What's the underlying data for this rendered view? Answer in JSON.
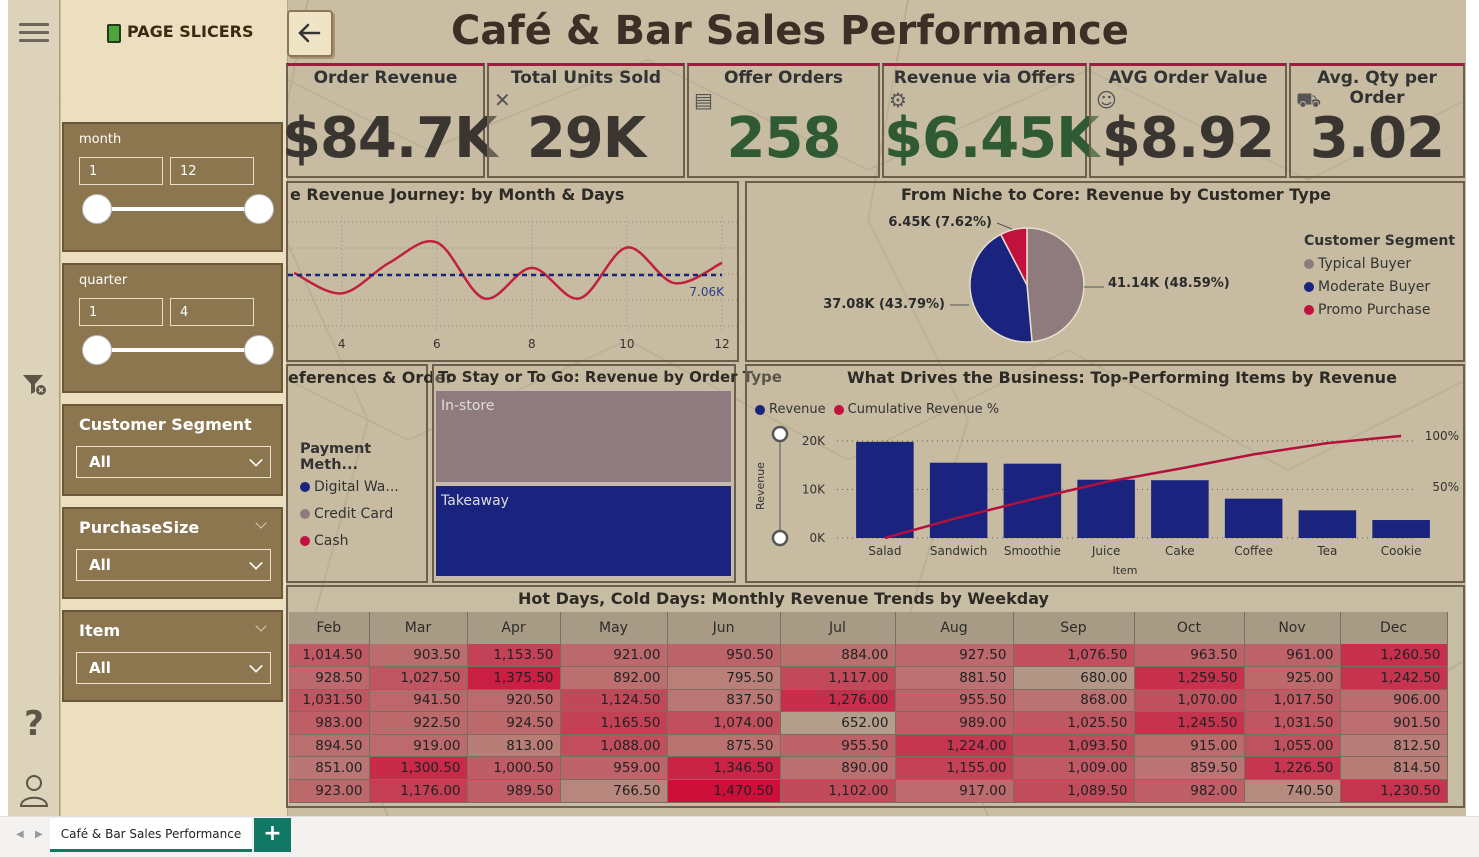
{
  "report": {
    "title": "Café & Bar Sales Performance"
  },
  "slicers": {
    "title": "PAGE SLICERS",
    "month": {
      "label": "month",
      "min": "1",
      "max": "12"
    },
    "quarter": {
      "label": "quarter",
      "min": "1",
      "max": "4"
    },
    "customer_segment": {
      "label": "Customer Segment",
      "value": "All"
    },
    "purchase_size": {
      "label": "PurchaseSize",
      "value": "All"
    },
    "item": {
      "label": "Item",
      "value": "All"
    }
  },
  "kpis": [
    {
      "label": "Order Revenue",
      "value": "$84.7K",
      "color": "#3a3530"
    },
    {
      "label": "Total Units Sold",
      "value": "29K",
      "color": "#3a3530"
    },
    {
      "label": "Offer Orders",
      "value": "258",
      "color": "#2f5a33"
    },
    {
      "label": "Revenue via Offers",
      "value": "$6.45K",
      "color": "#2f5a33"
    },
    {
      "label": "AVG Order Value",
      "value": "$8.92",
      "color": "#3a3530"
    },
    {
      "label": "Avg. Qty per Order",
      "value": "3.02",
      "color": "#3a3530"
    }
  ],
  "line_panel": {
    "title": "e Revenue Journey: by Month & Days",
    "avg_label": "7.06K",
    "x_ticks": [
      "4",
      "6",
      "8",
      "10",
      "12"
    ]
  },
  "pie_panel": {
    "title": "From Niche to Core: Revenue by Customer Type",
    "legend_title": "Customer Segment",
    "labels": [
      "41.14K (48.59%)",
      "37.08K (43.79%)",
      "6.45K (7.62%)"
    ]
  },
  "payment_panel": {
    "title": "eferences & Order",
    "legend_title": "Payment Meth...",
    "items": [
      "Digital Wa...",
      "Credit Card",
      "Cash"
    ]
  },
  "ordertype_panel": {
    "title": "To Stay or To Go: Revenue by Order Type",
    "segments": [
      "In-store",
      "Takeaway"
    ]
  },
  "pareto_panel": {
    "title": "What Drives the Business: Top-Performing Items by Revenue",
    "legend": [
      "Revenue",
      "Cumulative Revenue %"
    ],
    "y_ticks": [
      "20K",
      "10K",
      "0K"
    ],
    "y2_ticks": [
      "100%",
      "50%"
    ],
    "ylabel": "Revenue",
    "xlabel": "Item"
  },
  "heatmap": {
    "title": "Hot Days, Cold Days: Monthly Revenue Trends by Weekday",
    "months": [
      "Feb",
      "Mar",
      "Apr",
      "May",
      "Jun",
      "Jul",
      "Aug",
      "Sep",
      "Oct",
      "Nov",
      "Dec"
    ],
    "rows": [
      [
        "1,014.50",
        "903.50",
        "1,153.50",
        "921.00",
        "950.50",
        "884.00",
        "927.50",
        "1,076.50",
        "963.50",
        "961.00",
        "1,260.50"
      ],
      [
        "928.50",
        "1,027.50",
        "1,375.50",
        "892.00",
        "795.50",
        "1,117.00",
        "881.50",
        "680.00",
        "1,259.50",
        "925.00",
        "1,242.50"
      ],
      [
        "1,031.50",
        "941.50",
        "920.50",
        "1,124.50",
        "837.50",
        "1,276.00",
        "955.50",
        "868.00",
        "1,070.00",
        "1,017.50",
        "906.00"
      ],
      [
        "983.00",
        "922.50",
        "924.50",
        "1,165.50",
        "1,074.00",
        "652.00",
        "989.00",
        "1,025.50",
        "1,245.50",
        "1,031.50",
        "901.50"
      ],
      [
        "894.50",
        "919.00",
        "813.00",
        "1,088.00",
        "875.50",
        "955.50",
        "1,224.00",
        "1,093.50",
        "915.00",
        "1,055.00",
        "812.50"
      ],
      [
        "851.00",
        "1,300.50",
        "1,000.50",
        "959.00",
        "1,346.50",
        "890.00",
        "1,155.00",
        "1,009.00",
        "859.50",
        "1,226.50",
        "814.50"
      ],
      [
        "923.00",
        "1,176.00",
        "989.50",
        "766.50",
        "1,470.50",
        "1,102.00",
        "917.00",
        "1,089.50",
        "982.00",
        "740.50",
        "1,230.50"
      ]
    ]
  },
  "tabs": {
    "active": "Café & Bar Sales Performance",
    "add": "+"
  },
  "chart_data": [
    {
      "type": "line",
      "title": "e Revenue Journey: by Month & Days",
      "x": [
        3,
        4,
        5,
        6,
        7,
        8,
        9,
        10,
        11,
        12
      ],
      "y": [
        7.1,
        6.7,
        7.3,
        7.7,
        6.6,
        7.2,
        6.6,
        7.6,
        6.9,
        7.3
      ],
      "reference_line": 7.06,
      "xticks": [
        4,
        6,
        8,
        10,
        12
      ],
      "color": "#c0203f"
    },
    {
      "type": "pie",
      "title": "From Niche to Core: Revenue by Customer Type",
      "slices": [
        {
          "name": "Typical Buyer",
          "value": 41.14,
          "percent": 48.59,
          "color": "#8f7b7e"
        },
        {
          "name": "Moderate Buyer",
          "value": 37.08,
          "percent": 43.79,
          "color": "#1a237e"
        },
        {
          "name": "Promo Purchase",
          "value": 6.45,
          "percent": 7.62,
          "color": "#c2103f"
        }
      ]
    },
    {
      "type": "bar",
      "title": "To Stay or To Go: Revenue by Order Type",
      "categories": [
        "In-store",
        "Takeaway"
      ],
      "values": [
        50,
        50
      ],
      "colors": [
        "#8f7b7e",
        "#1a237e"
      ]
    },
    {
      "type": "bar",
      "title": "What Drives the Business: Top-Performing Items by Revenue",
      "categories": [
        "Salad",
        "Sandwich",
        "Smoothie",
        "Juice",
        "Cake",
        "Coffee",
        "Tea",
        "Cookie"
      ],
      "series": [
        {
          "name": "Revenue",
          "values": [
            19800,
            15500,
            15300,
            12000,
            11900,
            8100,
            5700,
            3700
          ],
          "color": "#1a237e"
        },
        {
          "name": "Cumulative Revenue %",
          "values": [
            0,
            20,
            38,
            55,
            68,
            82,
            93,
            100
          ],
          "color": "#b3103d"
        }
      ],
      "ylim": [
        0,
        21000
      ],
      "y2lim": [
        0,
        100
      ],
      "xlabel": "Item",
      "ylabel": "Revenue"
    }
  ]
}
